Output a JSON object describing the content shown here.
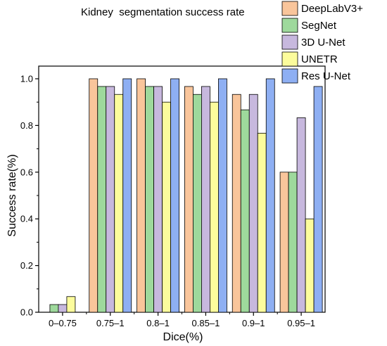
{
  "chart_data": {
    "type": "bar",
    "title": "Kidney  segmentation success rate",
    "xlabel": "Dice(%)",
    "ylabel": "Success rate(%)",
    "ylim": [
      0,
      1.0
    ],
    "yticks": [
      "0.0",
      "0.2",
      "0.4",
      "0.6",
      "0.8",
      "1.0"
    ],
    "categories": [
      "0–0.75",
      "0.75–1",
      "0.8–1",
      "0.85–1",
      "0.9–1",
      "0.95–1"
    ],
    "legend_position": "top-right",
    "grid": false,
    "series": [
      {
        "name": "DeepLabV3+",
        "color": "#F9C59B",
        "values": [
          0.0,
          1.0,
          1.0,
          0.967,
          0.933,
          0.6
        ]
      },
      {
        "name": "SegNet",
        "color": "#9ED99C",
        "values": [
          0.033,
          0.967,
          0.967,
          0.933,
          0.867,
          0.6
        ]
      },
      {
        "name": "3D U-Net",
        "color": "#C7B8DE",
        "values": [
          0.033,
          0.967,
          0.967,
          0.967,
          0.933,
          0.833
        ]
      },
      {
        "name": "UNETR",
        "color": "#FCFC9C",
        "values": [
          0.067,
          0.933,
          0.9,
          0.9,
          0.767,
          0.4
        ]
      },
      {
        "name": "Res U-Net",
        "color": "#8EAFF3",
        "values": [
          0.0,
          1.0,
          1.0,
          1.0,
          1.0,
          0.967
        ]
      }
    ]
  }
}
